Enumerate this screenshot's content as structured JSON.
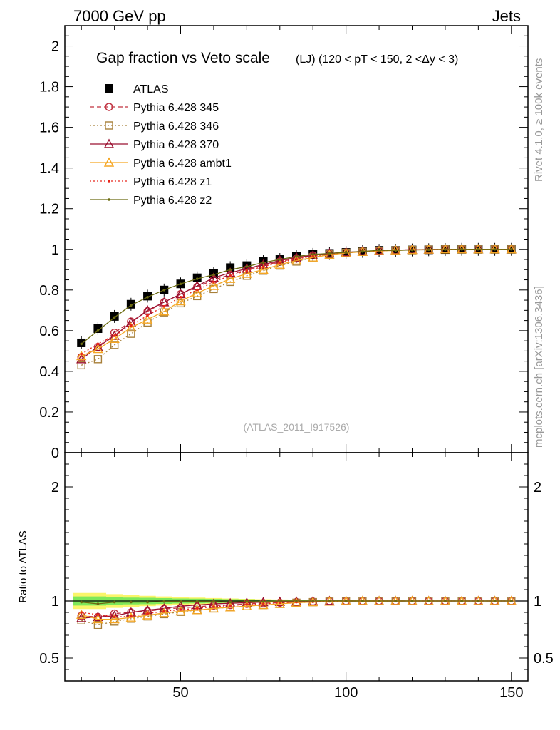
{
  "header": {
    "left": "7000 GeV pp",
    "right": "Jets",
    "side_top": "Rivet 4.1.0, ≥ 100k events",
    "side_bottom": "mcplots.cern.ch [arXiv:1306.3436]"
  },
  "chart_data": [
    {
      "type": "line",
      "panel": "main",
      "title": "Gap fraction vs Veto scale",
      "subtitle": "(LJ) (120 < pT < 150, 2 <Δy < 3)",
      "watermark": "(ATLAS_2011_I917526)",
      "xlabel": "",
      "ylabel": "",
      "xlim": [
        15,
        155
      ],
      "ylim": [
        0,
        2.1
      ],
      "xticks": [
        50,
        100,
        150
      ],
      "yticks": [
        0,
        0.2,
        0.4,
        0.6,
        0.8,
        1,
        1.2,
        1.4,
        1.6,
        1.8,
        2
      ],
      "ytick_labels": [
        "0",
        "0.2",
        "0.4",
        "0.6",
        "0.8",
        "1",
        "1.2",
        "1.4",
        "1.6",
        "1.8",
        "2"
      ],
      "legend_position": "top-left",
      "x": [
        20,
        25,
        30,
        35,
        40,
        45,
        50,
        55,
        60,
        65,
        70,
        75,
        80,
        85,
        90,
        95,
        100,
        105,
        110,
        115,
        120,
        125,
        130,
        135,
        140,
        145,
        150
      ],
      "series": [
        {
          "name": "ATLAS",
          "color": "#000000",
          "marker": "square-filled",
          "line": "none",
          "values": [
            0.54,
            0.61,
            0.67,
            0.73,
            0.77,
            0.8,
            0.83,
            0.86,
            0.88,
            0.91,
            0.92,
            0.94,
            0.95,
            0.965,
            0.975,
            0.98,
            0.985,
            0.99,
            0.995,
            0.995,
            0.997,
            0.998,
            0.999,
            1.0,
            1.0,
            1.0,
            1.0
          ]
        },
        {
          "name": "Pythia 6.428 345",
          "color": "#c0303f",
          "marker": "circle-open",
          "line": "dashed",
          "values": [
            0.47,
            0.52,
            0.59,
            0.645,
            0.695,
            0.74,
            0.78,
            0.815,
            0.85,
            0.875,
            0.9,
            0.92,
            0.94,
            0.955,
            0.97,
            0.98,
            0.985,
            0.99,
            0.993,
            0.996,
            0.998,
            0.999,
            1.0,
            1.0,
            1.0,
            1.0,
            1.0
          ]
        },
        {
          "name": "Pythia 6.428 346",
          "color": "#a8803a",
          "marker": "square-open",
          "line": "dotted",
          "values": [
            0.43,
            0.46,
            0.53,
            0.585,
            0.64,
            0.69,
            0.735,
            0.77,
            0.805,
            0.84,
            0.87,
            0.895,
            0.92,
            0.94,
            0.96,
            0.975,
            0.983,
            0.988,
            0.992,
            0.995,
            0.997,
            0.999,
            1.0,
            1.0,
            1.0,
            1.0,
            1.0
          ]
        },
        {
          "name": "Pythia 6.428 370",
          "color": "#9b1030",
          "marker": "triangle-open",
          "line": "solid",
          "values": [
            0.46,
            0.52,
            0.575,
            0.64,
            0.7,
            0.74,
            0.78,
            0.82,
            0.86,
            0.885,
            0.905,
            0.925,
            0.945,
            0.96,
            0.97,
            0.98,
            0.985,
            0.99,
            0.993,
            0.996,
            0.998,
            0.999,
            1.0,
            1.0,
            1.0,
            1.0,
            1.0
          ]
        },
        {
          "name": "Pythia 6.428 ambt1",
          "color": "#f5a623",
          "marker": "triangle-open",
          "line": "solid",
          "values": [
            0.475,
            0.51,
            0.56,
            0.615,
            0.655,
            0.695,
            0.745,
            0.785,
            0.82,
            0.855,
            0.88,
            0.9,
            0.925,
            0.945,
            0.96,
            0.973,
            0.982,
            0.988,
            0.992,
            0.995,
            0.997,
            0.999,
            1.0,
            1.0,
            1.0,
            1.0,
            1.0
          ]
        },
        {
          "name": "Pythia 6.428 z1",
          "color": "#e8261c",
          "marker": "dot",
          "line": "dotted",
          "values": [
            0.485,
            0.535,
            0.575,
            0.625,
            0.675,
            0.72,
            0.765,
            0.8,
            0.84,
            0.87,
            0.895,
            0.915,
            0.935,
            0.952,
            0.966,
            0.977,
            0.985,
            0.99,
            0.993,
            0.996,
            0.998,
            0.999,
            1.0,
            1.0,
            1.0,
            1.0,
            1.0
          ]
        },
        {
          "name": "Pythia 6.428 z2",
          "color": "#6b6b10",
          "marker": "dot",
          "line": "solid",
          "values": [
            0.535,
            0.6,
            0.665,
            0.725,
            0.765,
            0.8,
            0.83,
            0.855,
            0.875,
            0.9,
            0.915,
            0.935,
            0.95,
            0.965,
            0.975,
            0.98,
            0.985,
            0.99,
            0.995,
            0.995,
            0.997,
            0.998,
            0.999,
            1.0,
            1.0,
            1.0,
            1.0
          ]
        }
      ]
    },
    {
      "type": "line",
      "panel": "ratio",
      "ylabel": "Ratio to ATLAS",
      "xlim": [
        15,
        155
      ],
      "ylim": [
        0.3,
        2.3
      ],
      "xticks": [
        50,
        100,
        150
      ],
      "xtick_labels": [
        "50",
        "100",
        "150"
      ],
      "yticks": [
        0.5,
        1,
        2
      ],
      "ytick_labels": [
        "0.5",
        "1",
        "2"
      ],
      "band_inner_halfwidth": [
        0.04,
        0.04,
        0.035,
        0.03,
        0.028,
        0.025,
        0.022,
        0.02,
        0.018,
        0.016,
        0.014,
        0.012,
        0.01,
        0.009,
        0.008,
        0.007,
        0.006,
        0.005,
        0.004,
        0.004,
        0.003,
        0.003,
        0.002,
        0.002,
        0.002,
        0.002,
        0.002
      ],
      "band_outer_halfwidth": [
        0.07,
        0.07,
        0.06,
        0.05,
        0.045,
        0.04,
        0.035,
        0.03,
        0.026,
        0.022,
        0.019,
        0.016,
        0.013,
        0.011,
        0.01,
        0.009,
        0.008,
        0.007,
        0.006,
        0.005,
        0.004,
        0.004,
        0.003,
        0.003,
        0.003,
        0.003,
        0.003
      ],
      "band_colors": {
        "inner": "#7ee85a",
        "outer": "#faf56a"
      },
      "x": [
        20,
        25,
        30,
        35,
        40,
        45,
        50,
        55,
        60,
        65,
        70,
        75,
        80,
        85,
        90,
        95,
        100,
        105,
        110,
        115,
        120,
        125,
        130,
        135,
        140,
        145,
        150
      ],
      "series": [
        {
          "name": "Pythia 6.428 345",
          "color": "#c0303f",
          "marker": "circle-open",
          "line": "dashed",
          "values": [
            0.87,
            0.86,
            0.89,
            0.9,
            0.91,
            0.93,
            0.94,
            0.95,
            0.96,
            0.965,
            0.975,
            0.98,
            0.985,
            0.99,
            0.995,
            1.0,
            1.0,
            1.0,
            1.0,
            1.0,
            1.0,
            1.0,
            1.0,
            1.0,
            1.0,
            1.0,
            1.0
          ]
        },
        {
          "name": "Pythia 6.428 346",
          "color": "#a8803a",
          "marker": "square-open",
          "line": "dotted",
          "values": [
            0.83,
            0.79,
            0.82,
            0.845,
            0.865,
            0.885,
            0.905,
            0.92,
            0.935,
            0.945,
            0.955,
            0.965,
            0.975,
            0.985,
            0.99,
            0.995,
            1.0,
            1.0,
            1.0,
            1.0,
            1.0,
            1.0,
            1.0,
            1.0,
            1.0,
            1.0,
            1.0
          ]
        },
        {
          "name": "Pythia 6.428 370",
          "color": "#9b1030",
          "marker": "triangle-open",
          "line": "solid",
          "values": [
            0.85,
            0.86,
            0.87,
            0.9,
            0.92,
            0.935,
            0.955,
            0.965,
            0.975,
            0.98,
            0.985,
            0.99,
            0.993,
            0.995,
            0.997,
            1.0,
            1.0,
            1.0,
            1.0,
            1.0,
            1.0,
            1.0,
            1.0,
            1.0,
            1.0,
            1.0,
            1.0
          ]
        },
        {
          "name": "Pythia 6.428 ambt1",
          "color": "#f5a623",
          "marker": "triangle-open",
          "line": "solid",
          "values": [
            0.88,
            0.84,
            0.84,
            0.855,
            0.875,
            0.895,
            0.91,
            0.92,
            0.935,
            0.945,
            0.955,
            0.965,
            0.975,
            0.985,
            0.99,
            0.995,
            1.0,
            1.0,
            1.0,
            1.0,
            1.0,
            1.0,
            1.0,
            1.0,
            1.0,
            1.0,
            1.0
          ]
        },
        {
          "name": "Pythia 6.428 z1",
          "color": "#e8261c",
          "marker": "dot",
          "line": "dotted",
          "values": [
            0.9,
            0.88,
            0.86,
            0.865,
            0.89,
            0.91,
            0.925,
            0.935,
            0.95,
            0.96,
            0.97,
            0.975,
            0.985,
            0.99,
            0.993,
            0.997,
            1.0,
            1.0,
            1.0,
            1.0,
            1.0,
            1.0,
            1.0,
            1.0,
            1.0,
            1.0,
            1.0
          ]
        },
        {
          "name": "Pythia 6.428 z2",
          "color": "#6b6b10",
          "marker": "dot",
          "line": "solid",
          "values": [
            0.99,
            0.975,
            0.99,
            0.99,
            0.99,
            0.995,
            0.995,
            0.995,
            0.995,
            0.99,
            0.995,
            0.995,
            1.0,
            1.0,
            1.0,
            1.0,
            1.0,
            1.0,
            1.0,
            1.0,
            1.0,
            1.0,
            1.0,
            1.0,
            1.0,
            1.0,
            1.0
          ]
        }
      ]
    }
  ]
}
